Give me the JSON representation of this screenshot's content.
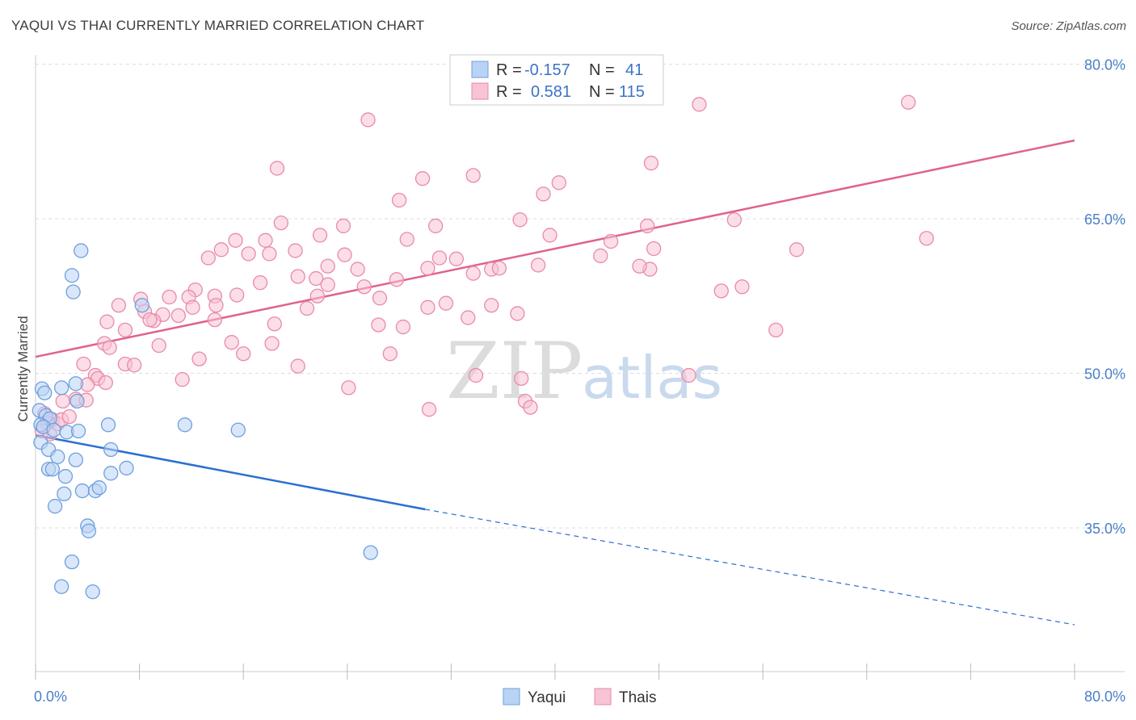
{
  "title": "YAQUI VS THAI CURRENTLY MARRIED CORRELATION CHART",
  "source": "Source: ZipAtlas.com",
  "colors": {
    "yaqui_fill": "#b9d3f5",
    "yaqui_stroke": "#6f9fdc",
    "yaqui_line": "#2a6fd0",
    "thai_fill": "#f8c3d4",
    "thai_stroke": "#e98aaa",
    "thai_line": "#e0628e",
    "tick_text": "#4a7fc8",
    "grid": "#dddddd"
  },
  "watermark": {
    "zip": "ZIP",
    "atlas": "atlas"
  },
  "legend": {
    "rows": [
      {
        "r_label": "R =",
        "r_value": "-0.157",
        "n_label": "N =",
        "n_value": "41"
      },
      {
        "r_label": "R =",
        "r_value": "0.581",
        "n_label": "N =",
        "n_value": "115"
      }
    ]
  },
  "bottom_legend": [
    "Yaqui",
    "Thais"
  ],
  "chart_data": {
    "type": "scatter",
    "title": "YAQUI VS THAI CURRENTLY MARRIED CORRELATION CHART",
    "xlabel": "",
    "ylabel": "Currently Married",
    "xlim": [
      0,
      80
    ],
    "ylim": [
      22,
      80
    ],
    "x_tick_labels": [
      "0.0%",
      "80.0%"
    ],
    "y_ticks": [
      35,
      50,
      65,
      80
    ],
    "y_tick_labels": [
      "35.0%",
      "50.0%",
      "65.0%",
      "80.0%"
    ],
    "grid": true,
    "legend_position": "top-center",
    "series": [
      {
        "name": "Yaqui",
        "r": -0.157,
        "n": 41,
        "trend": {
          "x0": 0,
          "y0": 44.0,
          "x1": 30,
          "y1": 36.8,
          "dashed_to_x": 80,
          "dashed_to_y": 25.6
        },
        "points": [
          [
            3.5,
            61.9
          ],
          [
            2.8,
            59.5
          ],
          [
            2.9,
            57.9
          ],
          [
            8.2,
            56.6
          ],
          [
            0.5,
            48.5
          ],
          [
            0.7,
            48.1
          ],
          [
            3.1,
            49.0
          ],
          [
            3.2,
            47.3
          ],
          [
            2.0,
            48.6
          ],
          [
            0.3,
            46.4
          ],
          [
            0.8,
            45.9
          ],
          [
            1.1,
            45.6
          ],
          [
            0.4,
            45.0
          ],
          [
            0.6,
            44.8
          ],
          [
            1.4,
            44.5
          ],
          [
            2.4,
            44.3
          ],
          [
            3.3,
            44.4
          ],
          [
            5.6,
            45.0
          ],
          [
            11.5,
            45.0
          ],
          [
            15.6,
            44.5
          ],
          [
            0.4,
            43.3
          ],
          [
            1.0,
            42.6
          ],
          [
            1.7,
            41.9
          ],
          [
            3.1,
            41.6
          ],
          [
            5.8,
            42.6
          ],
          [
            1.0,
            40.7
          ],
          [
            1.3,
            40.7
          ],
          [
            2.3,
            40.0
          ],
          [
            5.8,
            40.3
          ],
          [
            7.0,
            40.8
          ],
          [
            2.2,
            38.3
          ],
          [
            3.6,
            38.6
          ],
          [
            4.6,
            38.6
          ],
          [
            4.9,
            38.9
          ],
          [
            1.5,
            37.1
          ],
          [
            4.0,
            35.2
          ],
          [
            4.1,
            34.7
          ],
          [
            2.8,
            31.7
          ],
          [
            2.0,
            29.3
          ],
          [
            4.4,
            28.8
          ],
          [
            25.8,
            32.6
          ]
        ]
      },
      {
        "name": "Thais",
        "r": 0.581,
        "n": 115,
        "trend": {
          "x0": 0,
          "y0": 51.6,
          "x1": 80,
          "y1": 72.6
        },
        "points": [
          [
            25.6,
            74.6
          ],
          [
            51.1,
            76.1
          ],
          [
            67.2,
            76.3
          ],
          [
            18.6,
            69.9
          ],
          [
            47.4,
            70.4
          ],
          [
            29.8,
            68.9
          ],
          [
            33.7,
            69.2
          ],
          [
            39.1,
            67.4
          ],
          [
            40.3,
            68.5
          ],
          [
            28.0,
            66.8
          ],
          [
            18.9,
            64.6
          ],
          [
            23.7,
            64.3
          ],
          [
            30.8,
            64.3
          ],
          [
            37.3,
            64.9
          ],
          [
            39.6,
            63.4
          ],
          [
            53.8,
            64.9
          ],
          [
            68.6,
            63.1
          ],
          [
            15.4,
            62.9
          ],
          [
            17.7,
            62.9
          ],
          [
            21.9,
            63.4
          ],
          [
            28.6,
            63.0
          ],
          [
            44.3,
            62.8
          ],
          [
            47.1,
            64.3
          ],
          [
            14.3,
            62.0
          ],
          [
            16.4,
            61.6
          ],
          [
            18.0,
            61.6
          ],
          [
            20.0,
            61.9
          ],
          [
            23.8,
            61.5
          ],
          [
            32.4,
            61.1
          ],
          [
            13.3,
            61.2
          ],
          [
            22.5,
            60.4
          ],
          [
            30.2,
            60.2
          ],
          [
            31.1,
            61.2
          ],
          [
            35.1,
            60.1
          ],
          [
            38.7,
            60.5
          ],
          [
            43.5,
            61.4
          ],
          [
            47.3,
            60.1
          ],
          [
            47.6,
            62.1
          ],
          [
            24.8,
            60.1
          ],
          [
            20.2,
            59.4
          ],
          [
            21.6,
            59.2
          ],
          [
            22.5,
            58.6
          ],
          [
            33.7,
            59.7
          ],
          [
            35.7,
            60.2
          ],
          [
            27.8,
            59.1
          ],
          [
            25.3,
            58.4
          ],
          [
            17.3,
            58.8
          ],
          [
            15.5,
            57.6
          ],
          [
            12.3,
            58.1
          ],
          [
            13.8,
            57.5
          ],
          [
            11.8,
            57.4
          ],
          [
            10.3,
            57.4
          ],
          [
            8.1,
            57.2
          ],
          [
            21.7,
            57.5
          ],
          [
            26.5,
            57.3
          ],
          [
            6.4,
            56.6
          ],
          [
            8.4,
            56.0
          ],
          [
            9.8,
            55.7
          ],
          [
            11.0,
            55.6
          ],
          [
            12.1,
            56.4
          ],
          [
            13.9,
            56.6
          ],
          [
            20.9,
            56.3
          ],
          [
            31.6,
            56.8
          ],
          [
            35.1,
            56.6
          ],
          [
            9.1,
            55.1
          ],
          [
            8.8,
            55.2
          ],
          [
            13.8,
            55.2
          ],
          [
            30.2,
            56.4
          ],
          [
            33.3,
            55.4
          ],
          [
            37.1,
            55.8
          ],
          [
            5.5,
            55.0
          ],
          [
            6.9,
            54.2
          ],
          [
            18.4,
            54.8
          ],
          [
            26.4,
            54.7
          ],
          [
            28.3,
            54.5
          ],
          [
            5.3,
            52.9
          ],
          [
            5.7,
            52.5
          ],
          [
            9.5,
            52.7
          ],
          [
            15.1,
            53.0
          ],
          [
            18.2,
            52.9
          ],
          [
            16.0,
            51.9
          ],
          [
            12.6,
            51.4
          ],
          [
            6.9,
            50.9
          ],
          [
            7.6,
            50.8
          ],
          [
            3.7,
            50.9
          ],
          [
            4.6,
            49.8
          ],
          [
            4.8,
            49.5
          ],
          [
            5.4,
            49.1
          ],
          [
            11.3,
            49.4
          ],
          [
            20.2,
            50.7
          ],
          [
            27.3,
            51.9
          ],
          [
            33.9,
            49.8
          ],
          [
            37.4,
            49.5
          ],
          [
            50.3,
            49.8
          ],
          [
            24.1,
            48.6
          ],
          [
            4.0,
            48.9
          ],
          [
            3.1,
            47.5
          ],
          [
            3.9,
            47.4
          ],
          [
            2.1,
            47.3
          ],
          [
            0.7,
            46.1
          ],
          [
            1.3,
            45.5
          ],
          [
            1.7,
            45.1
          ],
          [
            2.0,
            45.5
          ],
          [
            2.6,
            45.8
          ],
          [
            0.9,
            45.2
          ],
          [
            0.5,
            44.4
          ],
          [
            1.1,
            44.1
          ],
          [
            30.3,
            46.5
          ],
          [
            37.7,
            47.3
          ],
          [
            38.1,
            46.7
          ],
          [
            57.0,
            54.2
          ],
          [
            52.8,
            58.0
          ],
          [
            46.5,
            60.4
          ],
          [
            54.4,
            58.4
          ],
          [
            58.6,
            62.0
          ]
        ]
      }
    ]
  }
}
